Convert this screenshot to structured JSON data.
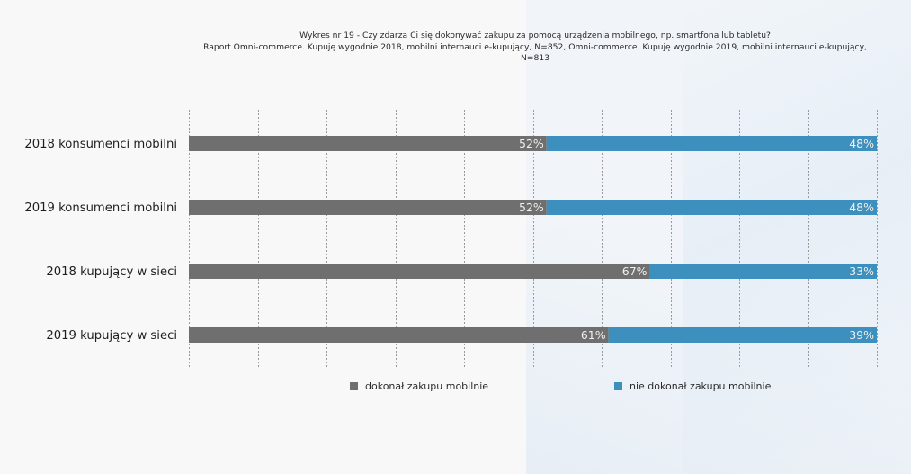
{
  "colors": {
    "background": "#f8f8f8",
    "series_mobile": "#6f6f6f",
    "series_not_mobile": "#3d8fbd",
    "gridline": "#9a9a9a",
    "value_label": "#f0f0f0"
  },
  "chart_data": {
    "type": "bar",
    "orientation": "horizontal",
    "stacked": true,
    "percent_stacked": true,
    "title_lines": [
      "Wykres nr 19 - Czy zdarza Ci się dokonywać zakupu za pomocą urządzenia mobilnego, np. smartfona lub tabletu?",
      "Raport Omni-commerce. Kupuję wygodnie 2018, mobilni internauci e-kupujący, N=852, Omni-commerce. Kupuję wygodnie 2019, mobilni internauci e-kupujący,",
      "N=813"
    ],
    "categories": [
      "2018 konsumenci mobilni",
      "2019 konsumenci mobilni",
      "2018 kupujący w sieci",
      "2019 kupujący w sieci"
    ],
    "series": [
      {
        "name": "dokonał zakupu mobilnie",
        "color": "#6f6f6f",
        "values": [
          52,
          52,
          67,
          61
        ],
        "labels": [
          "52%",
          "52%",
          "67%",
          "61%"
        ]
      },
      {
        "name": "nie dokonał zakupu mobilnie",
        "color": "#3d8fbd",
        "values": [
          48,
          48,
          33,
          39
        ],
        "labels": [
          "48%",
          "48%",
          "33%",
          "39%"
        ]
      }
    ],
    "xlim": [
      0,
      100
    ],
    "x_grid_step": 10,
    "grid": true,
    "grid_style": "dotted vertical",
    "xlabel": "",
    "ylabel": "",
    "x_tick_labels_visible": false,
    "legend_position": "bottom"
  }
}
